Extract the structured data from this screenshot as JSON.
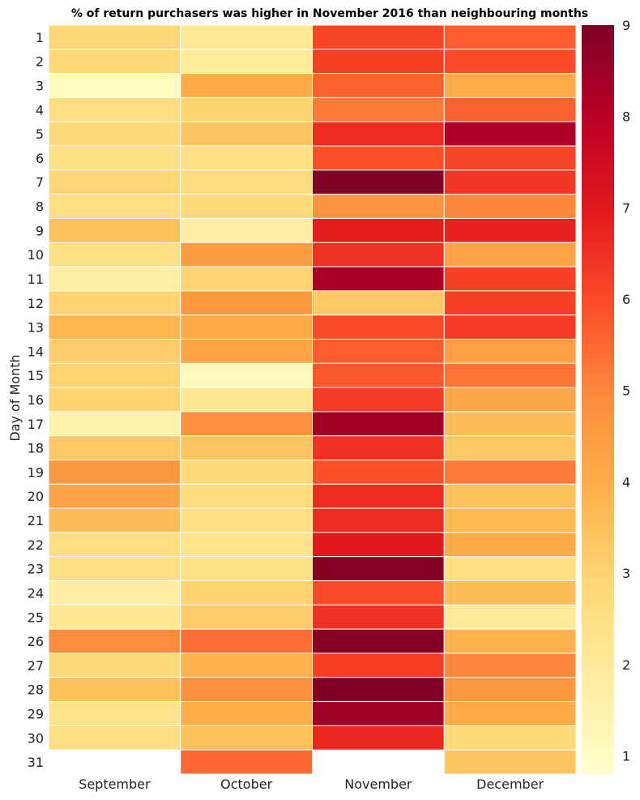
{
  "chart_data": {
    "type": "heatmap",
    "title": "% of return purchasers was higher in November 2016 than neighbouring months",
    "xlabel": "",
    "ylabel": "Day of Month",
    "x_categories": [
      "September",
      "October",
      "November",
      "December"
    ],
    "y_categories": [
      "1",
      "2",
      "3",
      "4",
      "5",
      "6",
      "7",
      "8",
      "9",
      "10",
      "11",
      "12",
      "13",
      "14",
      "15",
      "16",
      "17",
      "18",
      "19",
      "20",
      "21",
      "22",
      "23",
      "24",
      "25",
      "26",
      "27",
      "28",
      "29",
      "30",
      "31"
    ],
    "values": [
      [
        2.9,
        2.1,
        6.1,
        5.7
      ],
      [
        2.8,
        2.0,
        6.2,
        6.0
      ],
      [
        1.1,
        4.1,
        5.6,
        4.0
      ],
      [
        2.6,
        3.0,
        5.2,
        5.6
      ],
      [
        2.8,
        3.4,
        6.6,
        8.2
      ],
      [
        2.5,
        2.6,
        5.9,
        6.1
      ],
      [
        2.9,
        2.7,
        9.0,
        6.4
      ],
      [
        2.6,
        2.8,
        4.7,
        5.0
      ],
      [
        3.5,
        1.8,
        6.9,
        6.8
      ],
      [
        2.5,
        4.5,
        6.5,
        4.3
      ],
      [
        1.7,
        3.0,
        8.3,
        6.2
      ],
      [
        3.0,
        4.6,
        3.3,
        6.2
      ],
      [
        3.8,
        4.1,
        6.0,
        6.3
      ],
      [
        3.2,
        4.3,
        5.7,
        4.4
      ],
      [
        3.0,
        1.2,
        5.8,
        5.3
      ],
      [
        3.0,
        2.2,
        6.3,
        4.2
      ],
      [
        1.6,
        4.8,
        8.4,
        3.6
      ],
      [
        3.3,
        3.4,
        6.5,
        3.3
      ],
      [
        4.6,
        2.8,
        5.9,
        5.2
      ],
      [
        4.3,
        2.7,
        6.6,
        3.5
      ],
      [
        3.6,
        2.6,
        6.6,
        3.7
      ],
      [
        2.6,
        2.3,
        7.0,
        4.1
      ],
      [
        2.6,
        2.4,
        8.9,
        2.6
      ],
      [
        1.8,
        3.0,
        6.0,
        3.6
      ],
      [
        2.2,
        3.2,
        6.5,
        2.0
      ],
      [
        4.9,
        5.4,
        8.9,
        3.9
      ],
      [
        2.8,
        3.9,
        6.2,
        5.0
      ],
      [
        3.5,
        4.8,
        9.4,
        4.6
      ],
      [
        2.3,
        4.0,
        8.5,
        4.1
      ],
      [
        2.6,
        3.5,
        6.7,
        2.8
      ],
      [
        null,
        5.5,
        null,
        3.4
      ]
    ],
    "colorbar": {
      "min": 0.8,
      "max": 9.0,
      "ticks": [
        1,
        2,
        3,
        4,
        5,
        6,
        7,
        8,
        9
      ]
    },
    "colormap": "YlOrRd",
    "colormap_stops": [
      "#ffffcc",
      "#ffeda0",
      "#fed976",
      "#feb24c",
      "#fd8d3c",
      "#fc4e2a",
      "#e31a1c",
      "#bd0026",
      "#800026"
    ],
    "cell_border_color": "#ffffff",
    "grid": false,
    "legend": "colorbar-right"
  }
}
